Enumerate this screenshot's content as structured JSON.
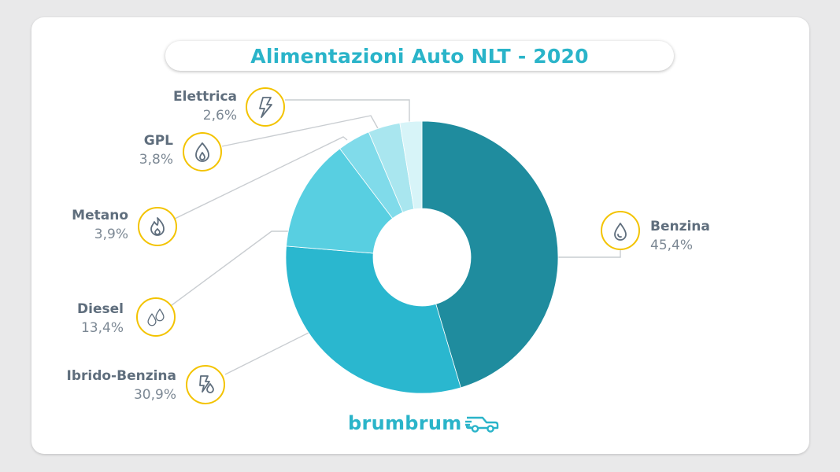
{
  "title": "Alimentazioni Auto NLT - 2020",
  "brand": "brumbrum",
  "colors": {
    "accent": "#2ab4c9",
    "icon_ring": "#f3c300",
    "leader": "#c9cdd1"
  },
  "chart_data": {
    "type": "pie",
    "variant": "donut",
    "title": "Alimentazioni Auto NLT - 2020",
    "unit": "%",
    "slices": [
      {
        "name": "Benzina",
        "value": 45.4,
        "label": "45,4%",
        "color": "#1f8c9e",
        "icon": "fuel-drop-icon"
      },
      {
        "name": "Ibrido-Benzina",
        "value": 30.9,
        "label": "30,9%",
        "color": "#2ab7cf",
        "icon": "hybrid-drop-bolt-icon"
      },
      {
        "name": "Diesel",
        "value": 13.4,
        "label": "13,4%",
        "color": "#58cfe1",
        "icon": "diesel-drops-icon"
      },
      {
        "name": "Metano",
        "value": 3.9,
        "label": "3,9%",
        "color": "#80dbea",
        "icon": "flame-icon"
      },
      {
        "name": "GPL",
        "value": 3.8,
        "label": "3,8%",
        "color": "#a9e6ef",
        "icon": "gas-flame-drop-icon"
      },
      {
        "name": "Elettrica",
        "value": 2.6,
        "label": "2,6%",
        "color": "#d7f4f8",
        "icon": "lightning-icon"
      }
    ]
  }
}
